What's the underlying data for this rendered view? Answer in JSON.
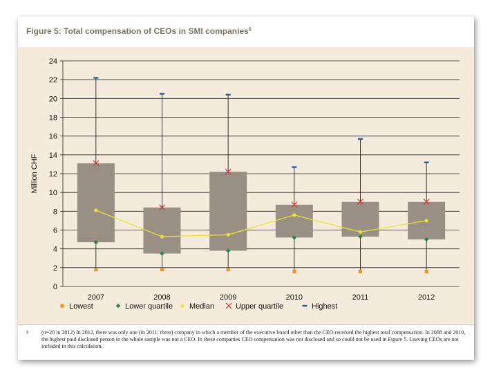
{
  "figure": {
    "title": "Figure 5: Total compensation of CEOs in SMI companies",
    "title_sup": "§"
  },
  "footnote": {
    "mark": "§",
    "text": "(n=20 in 2012) In 2012, there was only one (in 2011: three) company in which a member of the executive board other than the CEO received the highest total compensation. In 2008 and 2010, the highest paid disclosed person in the whole sample was not a CEO. In these companies CEO compensation was not disclosed and so could not be used in Figure 5. Leaving CEOs are not included in this calculation."
  },
  "colors": {
    "panel_bg": "#f5ebdc",
    "box": "#9a8f84",
    "lowest": "#f0941f",
    "lower_quartile": "#1f8a3a",
    "median": "#ece12e",
    "upper_quartile": "#d8312c",
    "highest": "#1f5fa8",
    "grid": "#222222",
    "title": "#7e7466"
  },
  "chart_data": {
    "type": "box",
    "ylabel": "Million CHF",
    "ylim": [
      0,
      24
    ],
    "yticks": [
      0,
      2,
      4,
      6,
      8,
      10,
      12,
      14,
      16,
      18,
      20,
      22,
      24
    ],
    "categories": [
      "2007",
      "2008",
      "2009",
      "2010",
      "2011",
      "2012"
    ],
    "series": [
      {
        "name": "Lowest",
        "values": [
          1.8,
          1.8,
          1.8,
          1.6,
          1.6,
          1.6
        ]
      },
      {
        "name": "Lower quartile",
        "values": [
          4.7,
          3.5,
          3.8,
          5.2,
          5.3,
          5.0
        ]
      },
      {
        "name": "Median",
        "values": [
          8.1,
          5.3,
          5.5,
          7.6,
          5.8,
          7.0
        ]
      },
      {
        "name": "Upper quartile",
        "values": [
          13.1,
          8.4,
          12.2,
          8.7,
          9.0,
          9.0
        ]
      },
      {
        "name": "Highest",
        "values": [
          22.2,
          20.5,
          20.4,
          12.7,
          15.7,
          13.2
        ]
      }
    ],
    "legend_position": "bottom",
    "grid": true
  }
}
